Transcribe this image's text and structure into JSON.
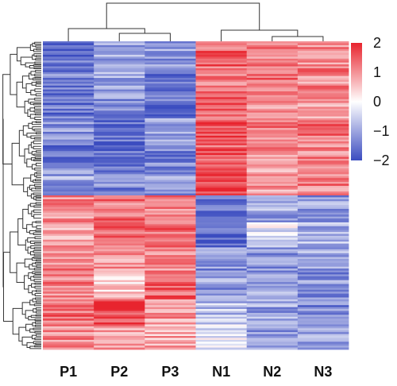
{
  "chart_data": {
    "type": "heatmap",
    "columns": [
      "P1",
      "P2",
      "P3",
      "N1",
      "N2",
      "N3"
    ],
    "column_order_note": "",
    "row_clusters": [
      {
        "values": [
          -1.6,
          -1.0,
          -1.1,
          1.4,
          1.1,
          1.0
        ]
      },
      {
        "values": [
          -1.3,
          -0.9,
          -1.5,
          1.2,
          1.4,
          1.1
        ]
      },
      {
        "values": [
          -1.5,
          -1.2,
          -1.6,
          1.3,
          0.9,
          1.0
        ]
      },
      {
        "values": [
          -1.2,
          -1.7,
          -1.0,
          1.6,
          1.2,
          1.3
        ]
      },
      {
        "values": [
          -1.4,
          -1.6,
          -1.3,
          1.5,
          1.0,
          1.1
        ]
      },
      {
        "values": [
          -1.0,
          -1.3,
          -1.1,
          1.8,
          1.0,
          1.2
        ]
      },
      {
        "values": [
          1.0,
          1.3,
          1.2,
          -1.5,
          -1.0,
          -1.1
        ]
      },
      {
        "values": [
          0.8,
          1.4,
          1.3,
          -1.8,
          -0.3,
          -0.8
        ]
      },
      {
        "values": [
          1.1,
          0.9,
          1.0,
          -1.2,
          -1.1,
          -1.0
        ]
      },
      {
        "values": [
          1.2,
          0.4,
          1.4,
          -1.1,
          -0.9,
          -1.2
        ]
      },
      {
        "values": [
          1.3,
          1.8,
          0.9,
          -0.7,
          -1.0,
          -1.3
        ]
      },
      {
        "values": [
          1.0,
          0.9,
          0.8,
          -0.2,
          -1.2,
          -1.0
        ]
      }
    ],
    "color_scale": {
      "min": -2,
      "max": 2,
      "low_color": "#3b4cc0",
      "mid_color": "#ffffff",
      "high_color": "#e8242e",
      "ticks": [
        "2",
        "1",
        "0",
        "−1",
        "−2"
      ]
    },
    "column_dendrogram": true,
    "row_dendrogram": true
  }
}
